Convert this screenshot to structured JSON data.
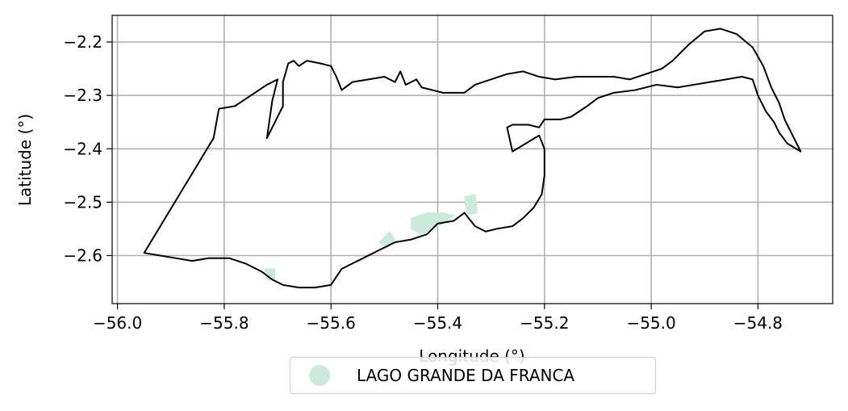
{
  "chart_data": {
    "type": "map",
    "xlabel": "Longitude (°)",
    "ylabel": "Latitude (°)",
    "xlim": [
      -56.01,
      -54.66
    ],
    "ylim": [
      -2.69,
      -2.15
    ],
    "xticks": [
      -56.0,
      -55.8,
      -55.6,
      -55.4,
      -55.2,
      -55.0,
      -54.8
    ],
    "xtick_labels": [
      "−56.0",
      "−55.8",
      "−55.6",
      "−55.4",
      "−55.2",
      "−55.0",
      "−54.8"
    ],
    "yticks": [
      -2.2,
      -2.3,
      -2.4,
      -2.5,
      -2.6
    ],
    "ytick_labels": [
      "−2.2",
      "−2.3",
      "−2.4",
      "−2.5",
      "−2.6"
    ],
    "grid": true,
    "boundary_color": "#000000",
    "boundary": [
      [
        -55.95,
        -2.595
      ],
      [
        -55.82,
        -2.38
      ],
      [
        -55.81,
        -2.325
      ],
      [
        -55.78,
        -2.32
      ],
      [
        -55.75,
        -2.3
      ],
      [
        -55.72,
        -2.28
      ],
      [
        -55.7,
        -2.27
      ],
      [
        -55.71,
        -2.31
      ],
      [
        -55.72,
        -2.38
      ],
      [
        -55.69,
        -2.32
      ],
      [
        -55.69,
        -2.3
      ],
      [
        -55.69,
        -2.275
      ],
      [
        -55.68,
        -2.24
      ],
      [
        -55.67,
        -2.235
      ],
      [
        -55.66,
        -2.245
      ],
      [
        -55.645,
        -2.235
      ],
      [
        -55.62,
        -2.24
      ],
      [
        -55.6,
        -2.245
      ],
      [
        -55.59,
        -2.265
      ],
      [
        -55.58,
        -2.29
      ],
      [
        -55.56,
        -2.275
      ],
      [
        -55.53,
        -2.27
      ],
      [
        -55.5,
        -2.265
      ],
      [
        -55.48,
        -2.275
      ],
      [
        -55.47,
        -2.255
      ],
      [
        -55.46,
        -2.28
      ],
      [
        -55.44,
        -2.27
      ],
      [
        -55.43,
        -2.285
      ],
      [
        -55.41,
        -2.29
      ],
      [
        -55.39,
        -2.295
      ],
      [
        -55.37,
        -2.295
      ],
      [
        -55.35,
        -2.295
      ],
      [
        -55.33,
        -2.28
      ],
      [
        -55.3,
        -2.27
      ],
      [
        -55.27,
        -2.26
      ],
      [
        -55.24,
        -2.255
      ],
      [
        -55.21,
        -2.265
      ],
      [
        -55.18,
        -2.27
      ],
      [
        -55.14,
        -2.265
      ],
      [
        -55.1,
        -2.265
      ],
      [
        -55.07,
        -2.265
      ],
      [
        -55.04,
        -2.27
      ],
      [
        -55.01,
        -2.26
      ],
      [
        -54.98,
        -2.25
      ],
      [
        -54.96,
        -2.235
      ],
      [
        -54.93,
        -2.205
      ],
      [
        -54.9,
        -2.18
      ],
      [
        -54.87,
        -2.175
      ],
      [
        -54.84,
        -2.185
      ],
      [
        -54.81,
        -2.21
      ],
      [
        -54.79,
        -2.245
      ],
      [
        -54.775,
        -2.285
      ],
      [
        -54.76,
        -2.315
      ],
      [
        -54.75,
        -2.345
      ],
      [
        -54.735,
        -2.375
      ],
      [
        -54.72,
        -2.405
      ],
      [
        -54.745,
        -2.39
      ],
      [
        -54.76,
        -2.37
      ],
      [
        -54.77,
        -2.35
      ],
      [
        -54.785,
        -2.33
      ],
      [
        -54.8,
        -2.3
      ],
      [
        -54.81,
        -2.27
      ],
      [
        -54.83,
        -2.265
      ],
      [
        -54.86,
        -2.27
      ],
      [
        -54.89,
        -2.275
      ],
      [
        -54.92,
        -2.28
      ],
      [
        -54.95,
        -2.285
      ],
      [
        -54.99,
        -2.28
      ],
      [
        -55.03,
        -2.29
      ],
      [
        -55.07,
        -2.295
      ],
      [
        -55.1,
        -2.305
      ],
      [
        -55.12,
        -2.32
      ],
      [
        -55.15,
        -2.34
      ],
      [
        -55.17,
        -2.345
      ],
      [
        -55.2,
        -2.345
      ],
      [
        -55.21,
        -2.36
      ],
      [
        -55.23,
        -2.355
      ],
      [
        -55.26,
        -2.355
      ],
      [
        -55.27,
        -2.36
      ],
      [
        -55.26,
        -2.405
      ],
      [
        -55.21,
        -2.375
      ],
      [
        -55.2,
        -2.4
      ],
      [
        -55.2,
        -2.45
      ],
      [
        -55.205,
        -2.485
      ],
      [
        -55.22,
        -2.51
      ],
      [
        -55.24,
        -2.53
      ],
      [
        -55.26,
        -2.545
      ],
      [
        -55.29,
        -2.55
      ],
      [
        -55.31,
        -2.555
      ],
      [
        -55.33,
        -2.545
      ],
      [
        -55.35,
        -2.52
      ],
      [
        -55.37,
        -2.535
      ],
      [
        -55.4,
        -2.54
      ],
      [
        -55.42,
        -2.56
      ],
      [
        -55.45,
        -2.57
      ],
      [
        -55.48,
        -2.575
      ],
      [
        -55.51,
        -2.59
      ],
      [
        -55.54,
        -2.605
      ],
      [
        -55.56,
        -2.615
      ],
      [
        -55.58,
        -2.625
      ],
      [
        -55.6,
        -2.655
      ],
      [
        -55.63,
        -2.66
      ],
      [
        -55.66,
        -2.66
      ],
      [
        -55.69,
        -2.655
      ],
      [
        -55.71,
        -2.645
      ],
      [
        -55.73,
        -2.63
      ],
      [
        -55.76,
        -2.615
      ],
      [
        -55.79,
        -2.605
      ],
      [
        -55.83,
        -2.605
      ],
      [
        -55.86,
        -2.61
      ],
      [
        -55.89,
        -2.605
      ],
      [
        -55.92,
        -2.6
      ],
      [
        -55.95,
        -2.595
      ]
    ],
    "series": [
      {
        "name": "LAGO GRANDE DA FRANCA",
        "color": "#cbeadb",
        "patches": [
          [
            [
              -55.725,
              -2.625
            ],
            [
              -55.705,
              -2.625
            ],
            [
              -55.705,
              -2.645
            ],
            [
              -55.72,
              -2.645
            ]
          ],
          [
            [
              -55.51,
              -2.575
            ],
            [
              -55.49,
              -2.555
            ],
            [
              -55.48,
              -2.57
            ],
            [
              -55.495,
              -2.585
            ]
          ],
          [
            [
              -55.45,
              -2.53
            ],
            [
              -55.42,
              -2.52
            ],
            [
              -55.39,
              -2.52
            ],
            [
              -55.37,
              -2.525
            ],
            [
              -55.39,
              -2.54
            ],
            [
              -55.43,
              -2.56
            ],
            [
              -55.45,
              -2.55
            ]
          ],
          [
            [
              -55.35,
              -2.49
            ],
            [
              -55.33,
              -2.485
            ],
            [
              -55.325,
              -2.52
            ],
            [
              -55.345,
              -2.525
            ]
          ]
        ]
      }
    ]
  },
  "legend": {
    "label": "LAGO GRANDE DA FRANCA",
    "color": "#cbeadb"
  }
}
